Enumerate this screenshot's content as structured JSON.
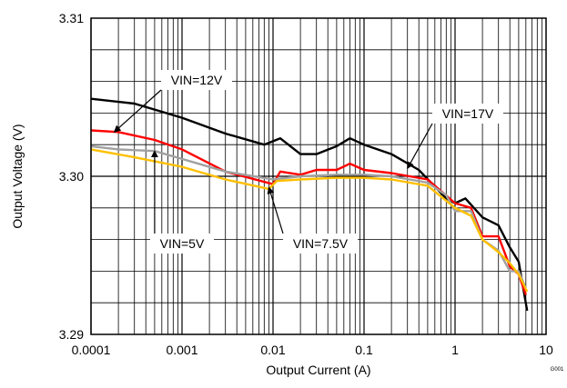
{
  "chart_data": {
    "type": "line",
    "title": "",
    "xlabel": "Output Current (A)",
    "ylabel": "Output Voltage (V)",
    "x_scale": "log",
    "xlim": [
      0.0001,
      10
    ],
    "ylim": [
      3.29,
      3.31
    ],
    "x_tick_labels": [
      "0.0001",
      "0.001",
      "0.01",
      "0.1",
      "1",
      "10"
    ],
    "y_tick_labels": [
      "3.29",
      "3.30",
      "3.31"
    ],
    "grid": true,
    "figure_code": "G001",
    "series": [
      {
        "name": "VIN=17V",
        "color": "#000000",
        "x": [
          0.0001,
          0.0003,
          0.001,
          0.003,
          0.008,
          0.012,
          0.02,
          0.03,
          0.05,
          0.07,
          0.1,
          0.2,
          0.4,
          0.8,
          1.0,
          1.3,
          2.0,
          3.0,
          4.0,
          5.0,
          6.2
        ],
        "y": [
          3.3049,
          3.3046,
          3.3037,
          3.3027,
          3.302,
          3.3024,
          3.3014,
          3.3014,
          3.3019,
          3.3024,
          3.302,
          3.3014,
          3.3004,
          3.2986,
          3.2983,
          3.2986,
          3.2974,
          3.2969,
          3.2955,
          3.2946,
          3.2915
        ]
      },
      {
        "name": "VIN=12V",
        "color": "#ff0000",
        "x": [
          0.0001,
          0.0002,
          0.0005,
          0.001,
          0.003,
          0.01,
          0.012,
          0.02,
          0.03,
          0.05,
          0.07,
          0.1,
          0.2,
          0.5,
          1.0,
          1.5,
          2.0,
          3.0,
          4.0,
          5.0,
          6.0
        ],
        "y": [
          3.3029,
          3.3028,
          3.3023,
          3.3017,
          3.3003,
          3.2995,
          3.3003,
          3.3001,
          3.3004,
          3.3004,
          3.3008,
          3.3004,
          3.3002,
          3.2998,
          3.2983,
          3.298,
          3.2962,
          3.2962,
          3.2943,
          3.2938,
          3.2925
        ]
      },
      {
        "name": "VIN=5V",
        "color": "#a0a0a0",
        "x": [
          0.0001,
          0.0002,
          0.0005,
          0.001,
          0.003,
          0.01,
          0.02,
          0.05,
          0.1,
          0.2,
          0.5,
          0.8,
          1.0,
          1.5,
          2.0,
          3.0,
          4.0,
          5.0,
          6.0
        ],
        "y": [
          3.3019,
          3.3017,
          3.3016,
          3.3011,
          3.3003,
          3.2998,
          3.3,
          3.3001,
          3.3001,
          3.3,
          3.2996,
          3.2988,
          3.2978,
          3.2978,
          3.296,
          3.2953,
          3.294,
          3.294,
          3.2929
        ]
      },
      {
        "name": "VIN=7.5V",
        "color": "#ffc000",
        "x": [
          0.0001,
          0.0003,
          0.001,
          0.003,
          0.009,
          0.011,
          0.02,
          0.05,
          0.1,
          0.2,
          0.5,
          1.0,
          1.5,
          2.0,
          3.0,
          4.0,
          5.0,
          6.2
        ],
        "y": [
          3.3017,
          3.3012,
          3.3006,
          3.2998,
          3.2992,
          3.2997,
          3.2998,
          3.2999,
          3.2999,
          3.2998,
          3.2994,
          3.298,
          3.2975,
          3.296,
          3.2952,
          3.2945,
          3.2938,
          3.2927
        ]
      }
    ],
    "annotations": [
      {
        "text": "VIN=12V",
        "points_to": {
          "x": 0.00018,
          "y": 3.3028
        }
      },
      {
        "text": "VIN=17V",
        "points_to": {
          "x": 0.3,
          "y": 3.3005
        }
      },
      {
        "text": "VIN=5V",
        "points_to": {
          "x": 0.0005,
          "y": 3.3016
        }
      },
      {
        "text": "VIN=7.5V",
        "points_to": {
          "x": 0.009,
          "y": 3.2993
        }
      }
    ]
  }
}
